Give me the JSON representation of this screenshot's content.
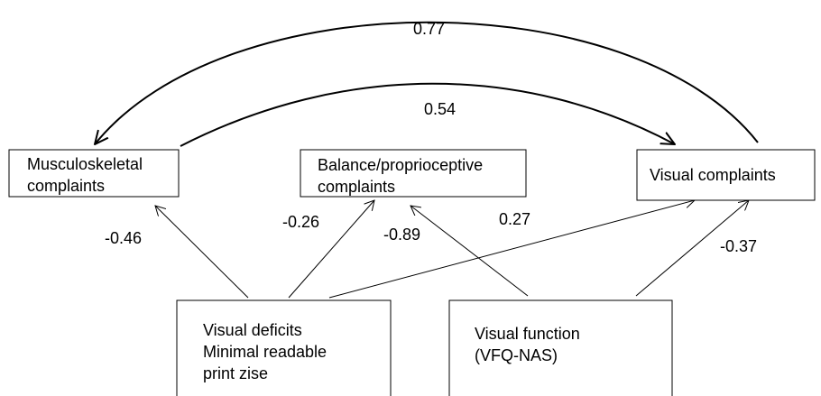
{
  "nodes": [
    {
      "label": [
        "Musculoskeletal",
        "complaints"
      ]
    },
    {
      "label": [
        "Balance/proprioceptive",
        "complaints"
      ]
    },
    {
      "label": [
        "Visual complaints"
      ]
    },
    {
      "label": [
        "Visual deficits",
        "Minimal readable",
        "print zise"
      ]
    },
    {
      "label": [
        "Visual function",
        "(VFQ-NAS)"
      ]
    }
  ],
  "edges": [
    {
      "label": "0.77"
    },
    {
      "label": "0.54"
    },
    {
      "label": "-0.46"
    },
    {
      "label": "-0.26"
    },
    {
      "label": "-0.89"
    },
    {
      "label": "0.27"
    },
    {
      "label": "-0.37"
    }
  ]
}
